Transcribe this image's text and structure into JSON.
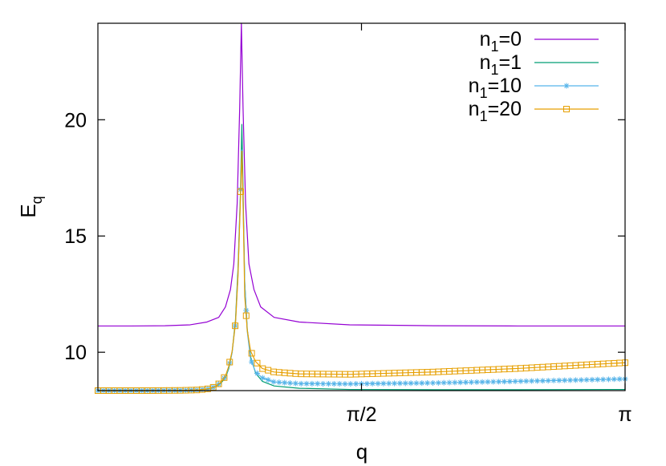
{
  "chart_data": {
    "type": "line",
    "title": "",
    "xlabel": "q",
    "ylabel": "E",
    "ylabel_subscript": "q",
    "xlim": [
      0,
      3.1416
    ],
    "ylim": [
      8.35,
      24.15
    ],
    "xticks": [
      {
        "value": 1.5708,
        "label": "π/2"
      },
      {
        "value": 3.1416,
        "label": "π"
      }
    ],
    "yticks": [
      {
        "value": 10,
        "label": "10"
      },
      {
        "value": 15,
        "label": "15"
      },
      {
        "value": 20,
        "label": "20"
      }
    ],
    "grid": false,
    "legend_position": "top-right",
    "legend_subscript": "1",
    "series": [
      {
        "name": "n1=0",
        "label_main": "n",
        "label_rest": "=0",
        "color": "#9400d3",
        "marker": "none",
        "x": [
          0.0,
          0.2,
          0.4,
          0.55,
          0.65,
          0.72,
          0.76,
          0.79,
          0.81,
          0.83,
          0.845,
          0.855,
          0.865,
          0.88,
          0.9,
          0.93,
          0.97,
          1.05,
          1.2,
          1.5,
          2.0,
          2.5,
          3.1416
        ],
        "values": [
          11.13,
          11.13,
          11.14,
          11.18,
          11.3,
          11.5,
          11.95,
          12.7,
          13.8,
          16.4,
          20.5,
          24.15,
          20.5,
          16.4,
          13.8,
          12.7,
          11.95,
          11.5,
          11.3,
          11.18,
          11.14,
          11.13,
          11.13
        ]
      },
      {
        "name": "n1=1",
        "label_main": "n",
        "label_rest": "=1",
        "color": "#009e73",
        "marker": "none",
        "x": [
          0.0,
          0.3,
          0.5,
          0.6,
          0.66,
          0.7,
          0.73,
          0.76,
          0.78,
          0.8,
          0.82,
          0.835,
          0.85,
          0.858,
          0.865,
          0.875,
          0.89,
          0.91,
          0.94,
          0.98,
          1.05,
          1.2,
          1.5,
          2.0,
          2.5,
          3.1416
        ],
        "values": [
          8.35,
          8.35,
          8.36,
          8.38,
          8.42,
          8.5,
          8.65,
          8.9,
          9.3,
          10.0,
          11.4,
          13.6,
          17.0,
          19.8,
          17.0,
          13.0,
          11.0,
          9.8,
          9.1,
          8.75,
          8.55,
          8.45,
          8.4,
          8.39,
          8.39,
          8.4
        ]
      },
      {
        "name": "n1=10",
        "label_main": "n",
        "label_rest": "=10",
        "color": "#56b4e9",
        "marker": "asterisk",
        "x": [
          0.0,
          0.3,
          0.5,
          0.6,
          0.66,
          0.7,
          0.73,
          0.76,
          0.78,
          0.8,
          0.82,
          0.835,
          0.85,
          0.858,
          0.865,
          0.875,
          0.89,
          0.91,
          0.94,
          0.98,
          1.05,
          1.2,
          1.5,
          2.0,
          2.5,
          3.1416
        ],
        "values": [
          8.35,
          8.35,
          8.36,
          8.38,
          8.43,
          8.52,
          8.68,
          8.95,
          9.35,
          10.0,
          11.25,
          13.3,
          16.8,
          18.7,
          16.4,
          13.0,
          10.9,
          9.7,
          9.15,
          8.9,
          8.72,
          8.65,
          8.64,
          8.68,
          8.75,
          8.85
        ]
      },
      {
        "name": "n1=20",
        "label_main": "n",
        "label_rest": "=20",
        "color": "#e69f00",
        "marker": "square",
        "x": [
          0.0,
          0.3,
          0.5,
          0.6,
          0.66,
          0.7,
          0.73,
          0.76,
          0.78,
          0.8,
          0.82,
          0.835,
          0.85,
          0.858,
          0.865,
          0.875,
          0.89,
          0.91,
          0.94,
          0.98,
          1.05,
          1.2,
          1.5,
          2.0,
          2.5,
          3.1416
        ],
        "values": [
          8.35,
          8.35,
          8.36,
          8.38,
          8.43,
          8.52,
          8.7,
          8.98,
          9.4,
          10.05,
          11.25,
          13.3,
          16.7,
          18.65,
          16.5,
          12.4,
          10.95,
          10.05,
          9.6,
          9.3,
          9.15,
          9.07,
          9.05,
          9.15,
          9.3,
          9.55
        ]
      }
    ]
  }
}
